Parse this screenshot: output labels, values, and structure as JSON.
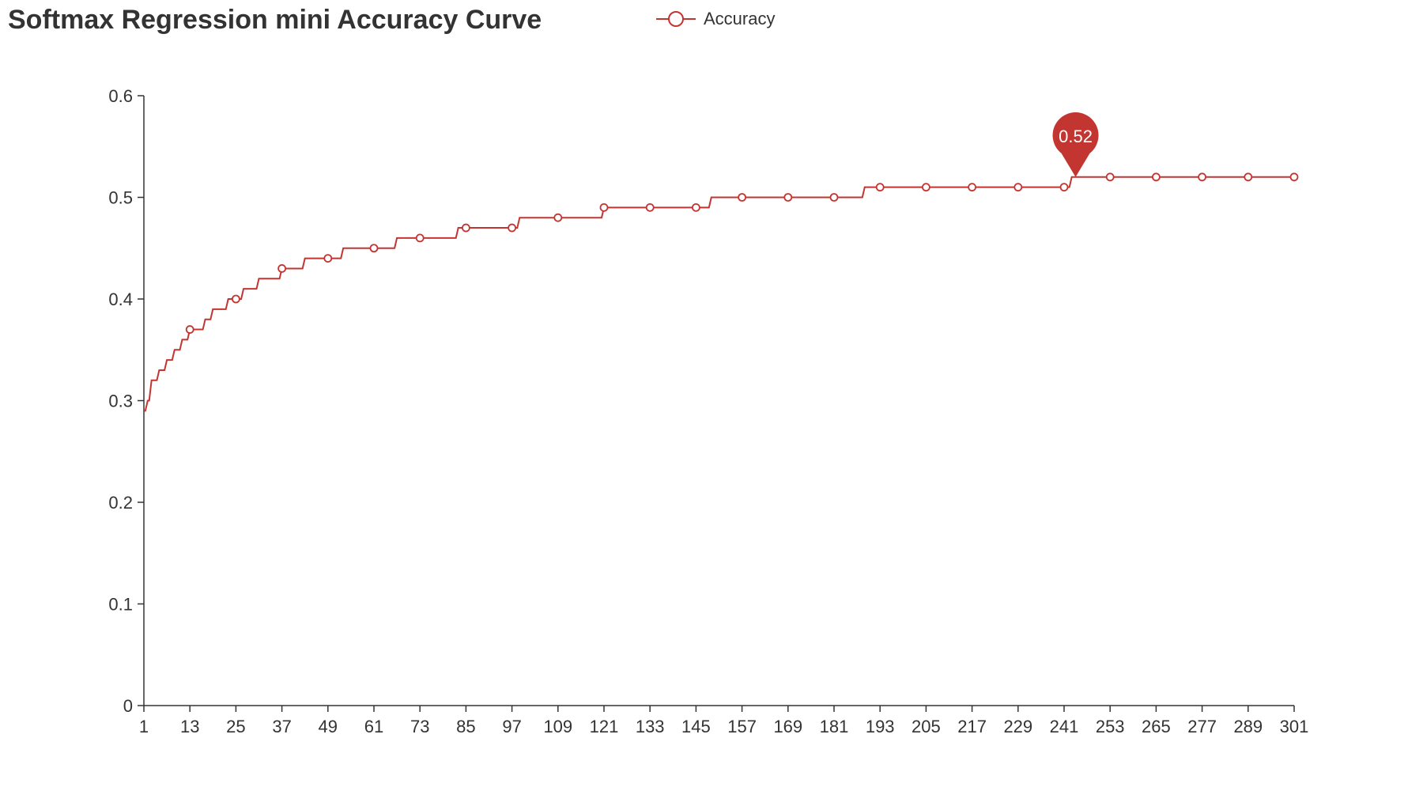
{
  "chart_data": {
    "type": "line",
    "title": "Softmax Regression mini Accuracy Curve",
    "xlabel": "",
    "ylabel": "",
    "series": [
      {
        "name": "Accuracy",
        "color": "#c23531",
        "step": true,
        "x": [
          1,
          2,
          3,
          5,
          7,
          9,
          11,
          13,
          15,
          17,
          19,
          23,
          25,
          27,
          31,
          35,
          37,
          43,
          53,
          67,
          83,
          99,
          121,
          149,
          189,
          243
        ],
        "values": [
          0.29,
          0.3,
          0.32,
          0.33,
          0.34,
          0.35,
          0.36,
          0.37,
          0.37,
          0.38,
          0.39,
          0.4,
          0.4,
          0.41,
          0.42,
          0.42,
          0.43,
          0.44,
          0.45,
          0.46,
          0.47,
          0.48,
          0.49,
          0.5,
          0.51,
          0.52
        ],
        "markers_x": [
          13,
          25,
          37,
          49,
          61,
          73,
          85,
          97,
          109,
          121,
          133,
          145,
          157,
          169,
          181,
          193,
          205,
          217,
          229,
          241,
          253,
          265,
          277,
          289,
          301
        ]
      }
    ],
    "x_tick_labels": [
      "1",
      "13",
      "25",
      "37",
      "49",
      "61",
      "73",
      "85",
      "97",
      "109",
      "121",
      "133",
      "145",
      "157",
      "169",
      "181",
      "193",
      "205",
      "217",
      "229",
      "241",
      "253",
      "265",
      "277",
      "289",
      "301"
    ],
    "y_tick_labels": [
      "0",
      "0.1",
      "0.2",
      "0.3",
      "0.4",
      "0.5",
      "0.6"
    ],
    "xlim": [
      1,
      301
    ],
    "ylim": [
      0,
      0.6
    ],
    "grid": false,
    "legend_position": "top-center",
    "max_marker": {
      "x": 244,
      "value": 0.52,
      "label": "0.52"
    }
  },
  "legend": {
    "label": "Accuracy"
  }
}
